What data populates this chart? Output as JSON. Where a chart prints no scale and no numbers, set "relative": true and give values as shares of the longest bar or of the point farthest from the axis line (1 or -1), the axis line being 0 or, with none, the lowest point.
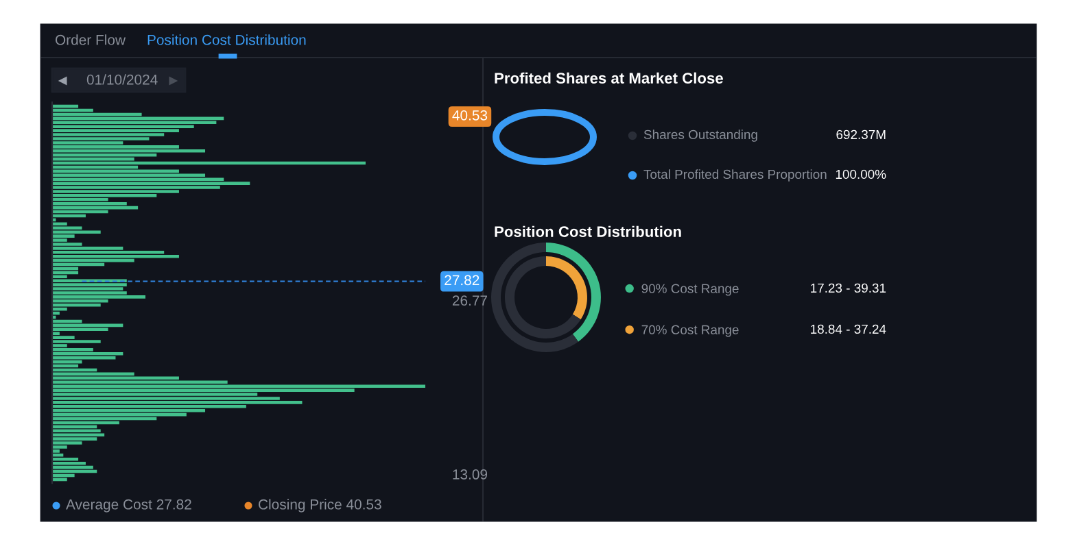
{
  "chart_data": [
    {
      "type": "bar",
      "orientation": "horizontal",
      "relative": true,
      "color": "#43c08c",
      "ylim": [
        12.4,
        41.5
      ],
      "yticks": [
        13.09,
        26.77,
        40.53
      ],
      "x": [
        41.2,
        40.89,
        40.58,
        40.27,
        39.96,
        39.65,
        39.34,
        39.03,
        38.72,
        38.41,
        38.1,
        37.79,
        37.48,
        37.17,
        36.86,
        36.55,
        36.24,
        35.93,
        35.62,
        35.31,
        35.0,
        34.69,
        34.38,
        34.07,
        33.76,
        33.45,
        33.14,
        32.83,
        32.52,
        32.21,
        31.9,
        31.59,
        31.28,
        30.97,
        30.66,
        30.35,
        30.04,
        29.73,
        29.42,
        29.11,
        28.8,
        28.49,
        28.18,
        27.87,
        27.56,
        27.25,
        26.94,
        26.63,
        26.32,
        26.01,
        25.7,
        25.39,
        25.08,
        24.77,
        24.46,
        24.15,
        23.84,
        23.53,
        23.22,
        22.91,
        22.6,
        22.29,
        21.98,
        21.67,
        21.36,
        21.05,
        20.74,
        20.43,
        20.12,
        19.81,
        19.5,
        19.19,
        18.88,
        18.57,
        18.26,
        17.95,
        17.64,
        17.33,
        17.02,
        16.71,
        16.4,
        16.09,
        15.78,
        15.47,
        15.16,
        14.85,
        14.54,
        14.23,
        13.92,
        13.61,
        13.3,
        12.99,
        12.68
      ],
      "values": [
        0.07,
        0.11,
        0.24,
        0.46,
        0.44,
        0.38,
        0.34,
        0.3,
        0.26,
        0.19,
        0.34,
        0.41,
        0.28,
        0.22,
        0.84,
        0.23,
        0.34,
        0.41,
        0.46,
        0.53,
        0.45,
        0.34,
        0.28,
        0.15,
        0.2,
        0.23,
        0.15,
        0.09,
        0.01,
        0.04,
        0.08,
        0.13,
        0.06,
        0.04,
        0.08,
        0.19,
        0.3,
        0.34,
        0.22,
        0.14,
        0.07,
        0.07,
        0.04,
        0.2,
        0.2,
        0.19,
        0.2,
        0.25,
        0.15,
        0.13,
        0.04,
        0.02,
        0.01,
        0.08,
        0.19,
        0.15,
        0.02,
        0.06,
        0.13,
        0.04,
        0.11,
        0.19,
        0.17,
        0.08,
        0.07,
        0.12,
        0.22,
        0.34,
        0.47,
        1,
        0.81,
        0.55,
        0.61,
        0.67,
        0.52,
        0.41,
        0.36,
        0.28,
        0.18,
        0.12,
        0.13,
        0.14,
        0.12,
        0.08,
        0.04,
        0.02,
        0.03,
        0.07,
        0.09,
        0.11,
        0.12,
        0.06,
        0.04
      ],
      "ref_lines": [
        {
          "axis": "y",
          "value": 27.82,
          "label": "27.82",
          "color": "#2f7fd6",
          "line_style": "dashed"
        }
      ],
      "annotations": [
        "Order Flow",
        "Position Cost Distribution",
        "01/10/2024",
        "Average Cost 27.82",
        "Closing Price 40.53"
      ]
    },
    {
      "type": "other",
      "title": "Profited Shares at Market Close",
      "color": "#3a9cf5",
      "annotations": [
        "Shares Outstanding",
        "692.37M",
        "Total Profited Shares Proportion",
        "100.00%"
      ]
    },
    {
      "type": "donut",
      "title": "Position Cost Distribution",
      "legend": "right",
      "series": [
        {
          "name": "90% Cost Range",
          "colors": [
            "#3dbd8a",
            "#2a2e38"
          ],
          "values": [
            40,
            60
          ]
        },
        {
          "name": "70% Cost Range",
          "colors": [
            "#f0a33a",
            "#2a2e38"
          ],
          "values": [
            34,
            66
          ]
        }
      ],
      "value_labels": [
        "17.23 - 39.31",
        "18.84 - 37.24"
      ]
    }
  ]
}
